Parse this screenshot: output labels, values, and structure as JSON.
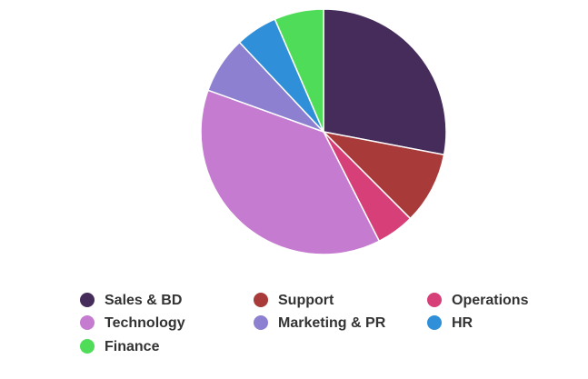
{
  "chart_data": {
    "type": "pie",
    "categories": [
      "Sales & BD",
      "Support",
      "Operations",
      "Technology",
      "Marketing & PR",
      "HR",
      "Finance"
    ],
    "values": [
      28,
      9.5,
      5,
      38,
      7.5,
      5.5,
      6.5
    ],
    "colors": [
      "#452c5a",
      "#a83a3a",
      "#d63f78",
      "#c57bcf",
      "#8e80d1",
      "#2f8fd8",
      "#4fdd59"
    ],
    "legend": "bottom"
  }
}
